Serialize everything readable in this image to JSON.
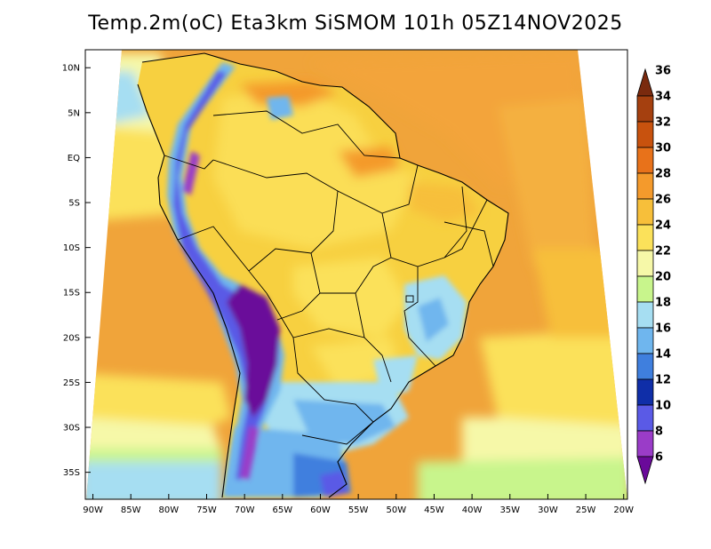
{
  "title": "Temp.2m(oC) Eta3km SiSMOM 101h 05Z14NOV2025",
  "map": {
    "lat_labels": [
      "10N",
      "5N",
      "EQ",
      "5S",
      "10S",
      "15S",
      "20S",
      "25S",
      "30S",
      "35S"
    ],
    "lon_labels": [
      "90W",
      "85W",
      "80W",
      "75W",
      "70W",
      "65W",
      "60W",
      "55W",
      "50W",
      "45W",
      "40W",
      "35W",
      "30W",
      "25W",
      "20W"
    ],
    "lat_range": [
      12,
      -38
    ],
    "lon_range": [
      -91,
      -19.5
    ]
  },
  "colorbar": {
    "labels": [
      "36",
      "34",
      "32",
      "30",
      "28",
      "26",
      "24",
      "22",
      "20",
      "18",
      "16",
      "14",
      "12",
      "10",
      "8",
      "6"
    ],
    "colors": [
      "#7a2a0e",
      "#a5400f",
      "#c8520e",
      "#e8721a",
      "#f49a2c",
      "#f7bf3a",
      "#fbe15a",
      "#f6f8a8",
      "#c8f58c",
      "#a6def2",
      "#6fb6ee",
      "#3f7fde",
      "#0f2ea8",
      "#5a5ae6",
      "#9a3cc8",
      "#6a0a9a"
    ]
  },
  "colors": {
    "ocean_background": "#f0a43a",
    "land": "#f7d040"
  }
}
